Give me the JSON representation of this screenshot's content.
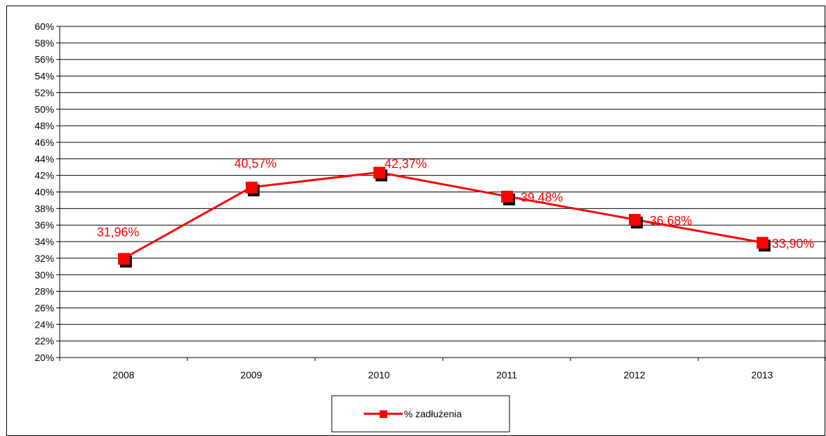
{
  "chart_data": {
    "type": "line",
    "categories": [
      "2008",
      "2009",
      "2010",
      "2011",
      "2012",
      "2013"
    ],
    "series": [
      {
        "name": "% zadłużenia",
        "values": [
          31.96,
          40.57,
          42.37,
          39.48,
          36.68,
          33.9
        ],
        "labels": [
          "31,96%",
          "40,57%",
          "42,37%",
          "39,48%",
          "36,68%",
          "33,90%"
        ],
        "color": "#ff0000"
      }
    ],
    "ylim": [
      20,
      60
    ],
    "ytick_step": 2,
    "ytick_labels": [
      "20%",
      "22%",
      "24%",
      "26%",
      "28%",
      "30%",
      "32%",
      "34%",
      "36%",
      "38%",
      "40%",
      "42%",
      "44%",
      "46%",
      "48%",
      "50%",
      "52%",
      "54%",
      "56%",
      "58%",
      "60%"
    ],
    "grid": true,
    "legend_position": "bottom",
    "title": "",
    "xlabel": "",
    "ylabel": ""
  }
}
